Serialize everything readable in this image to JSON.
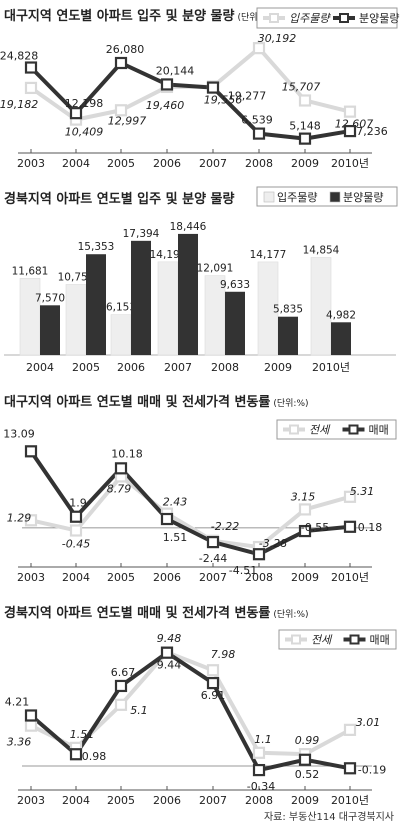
{
  "source_text": "자료: 부동산114 대구경북지사",
  "chart_data": [
    {
      "type": "line",
      "title": "대구지역 연도별 아파트 입주 및 분양 물량",
      "unit": "(단위:가구)",
      "categories": [
        "2003",
        "2004",
        "2005",
        "2006",
        "2007",
        "2008",
        "2009",
        "2010년"
      ],
      "series": [
        {
          "name": "입주물량",
          "color": "#d9d9d9",
          "values": [
            19182,
            10409,
            12997,
            19460,
            19556,
            30192,
            15707,
            12607
          ],
          "labels": [
            "19,182",
            "10,409",
            "12,997",
            "19,460",
            "19,556",
            "30,192",
            "15,707",
            "12,607"
          ]
        },
        {
          "name": "분양물량",
          "color": "#333333",
          "values": [
            24828,
            12198,
            26080,
            20144,
            19277,
            6539,
            5148,
            7236
          ],
          "labels": [
            "24,828",
            "12,198",
            "26,080",
            "20,144",
            "19,277",
            "6,539",
            "5,148",
            "7,236"
          ]
        }
      ],
      "ylim": [
        2000,
        33000
      ]
    },
    {
      "type": "bar",
      "title": "경북지역 아파트 연도별 입주 및 분양 물량",
      "categories": [
        "2004",
        "2005",
        "2006",
        "2007",
        "2008",
        "2009",
        "2010년"
      ],
      "series": [
        {
          "name": "입주물량",
          "color": "#eeeeee",
          "values": [
            11681,
            10750,
            6153,
            14191,
            12091,
            14177,
            14854
          ],
          "labels": [
            "11,681",
            "10,750",
            "6,153",
            "14,191",
            "12,091",
            "14,177",
            "14,854"
          ]
        },
        {
          "name": "분양물량",
          "color": "#333333",
          "values": [
            7570,
            15353,
            17394,
            18446,
            9633,
            5835,
            4982
          ],
          "labels": [
            "7,570",
            "15,353",
            "17,394",
            "18,446",
            "9,633",
            "5,835",
            "4,982"
          ]
        }
      ],
      "ylim": [
        0,
        19500
      ]
    },
    {
      "type": "line",
      "title": "대구지역 아파트 연도별 매매 및 전세가격 변동률",
      "unit": "(단위:%)",
      "categories": [
        "2003",
        "2004",
        "2005",
        "2006",
        "2007",
        "2008",
        "2009",
        "2010년"
      ],
      "series": [
        {
          "name": "전세",
          "color": "#d9d9d9",
          "values": [
            1.29,
            -0.45,
            8.79,
            2.43,
            -2.22,
            -3.28,
            3.15,
            5.31
          ],
          "labels": [
            "1.29",
            "-0.45",
            "8.79",
            "2.43",
            "-2.22",
            "-3.28",
            "3.15",
            "5.31"
          ]
        },
        {
          "name": "매매",
          "color": "#333333",
          "values": [
            13.09,
            1.9,
            10.18,
            1.51,
            -2.44,
            -4.51,
            -0.55,
            0.18
          ],
          "labels": [
            "13.09",
            "1.9",
            "10.18",
            "1.51",
            "-2.44",
            "-4.51",
            "-0.55",
            "0.18"
          ]
        }
      ],
      "ylim": [
        -5.5,
        14
      ]
    },
    {
      "type": "line",
      "title": "경북지역 아파트 연도별 매매 및 전세가격 변동률",
      "unit": "(단위:%)",
      "categories": [
        "2003",
        "2004",
        "2005",
        "2006",
        "2007",
        "2008",
        "2009",
        "2010년"
      ],
      "series": [
        {
          "name": "전세",
          "color": "#d9d9d9",
          "values": [
            3.36,
            1.51,
            5.1,
            9.48,
            7.98,
            1.1,
            0.99,
            3.01
          ],
          "labels": [
            "3.36",
            "1.51",
            "5.1",
            "9.48",
            "7.98",
            "1.1",
            "0.99",
            "3.01"
          ]
        },
        {
          "name": "매매",
          "color": "#333333",
          "values": [
            4.21,
            0.98,
            6.67,
            9.44,
            6.91,
            -0.34,
            0.52,
            -0.19
          ],
          "labels": [
            "4.21",
            "0.98",
            "6.67",
            "9.44",
            "6.91",
            "-0.34",
            "0.52",
            "-0.19"
          ]
        }
      ],
      "ylim": [
        -2,
        10.5
      ]
    }
  ]
}
